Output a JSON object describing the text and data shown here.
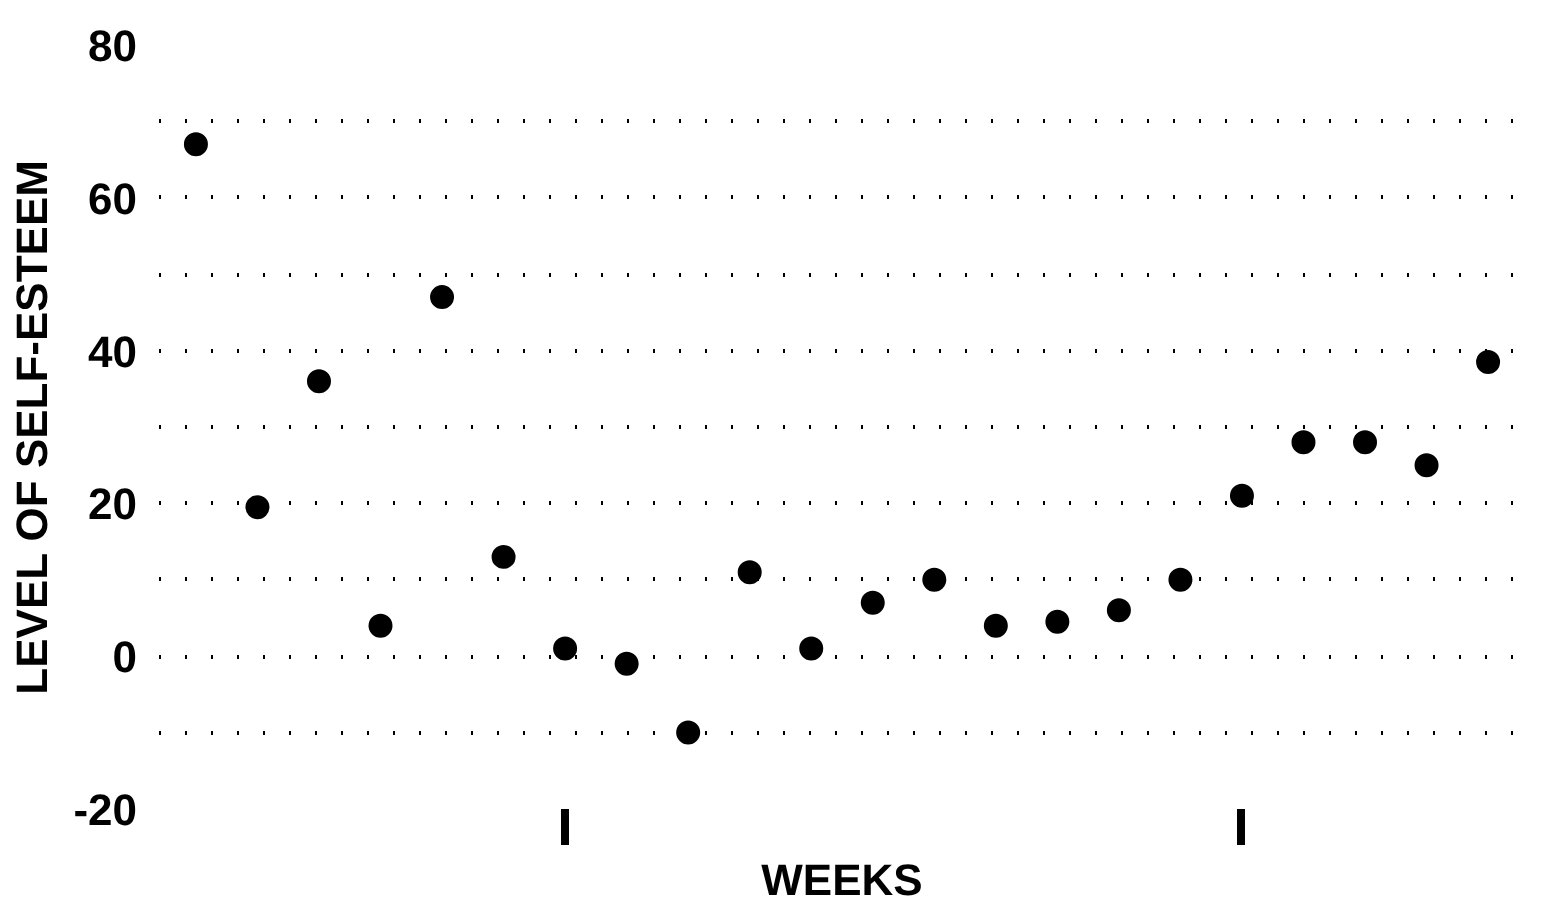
{
  "chart_data": {
    "type": "scatter",
    "xlabel": "WEEKS",
    "ylabel": "LEVEL OF SELF-ESTEEM",
    "categories": [
      null,
      null,
      null,
      null,
      null,
      null,
      null,
      null,
      null,
      null,
      null,
      null,
      null,
      null,
      null,
      null,
      null,
      null,
      null,
      null,
      null,
      null
    ],
    "series": [
      {
        "color": "#000000",
        "values": [
          67,
          19.5,
          36,
          4,
          47,
          13,
          1,
          -1,
          -10,
          11,
          1,
          7,
          10,
          4,
          4.5,
          6,
          10,
          21,
          28,
          28,
          25,
          38.5
        ]
      }
    ],
    "ylim": [
      -20,
      80
    ],
    "yticks": [
      -20,
      {
        "value": -10,
        "label": null
      },
      0,
      {
        "value": 10,
        "label": null
      },
      20,
      {
        "value": 30,
        "label": null
      },
      40,
      {
        "value": 50,
        "label": null
      },
      60,
      {
        "value": 70,
        "label": null
      },
      80
    ],
    "grid": "y",
    "marker": "circle"
  }
}
